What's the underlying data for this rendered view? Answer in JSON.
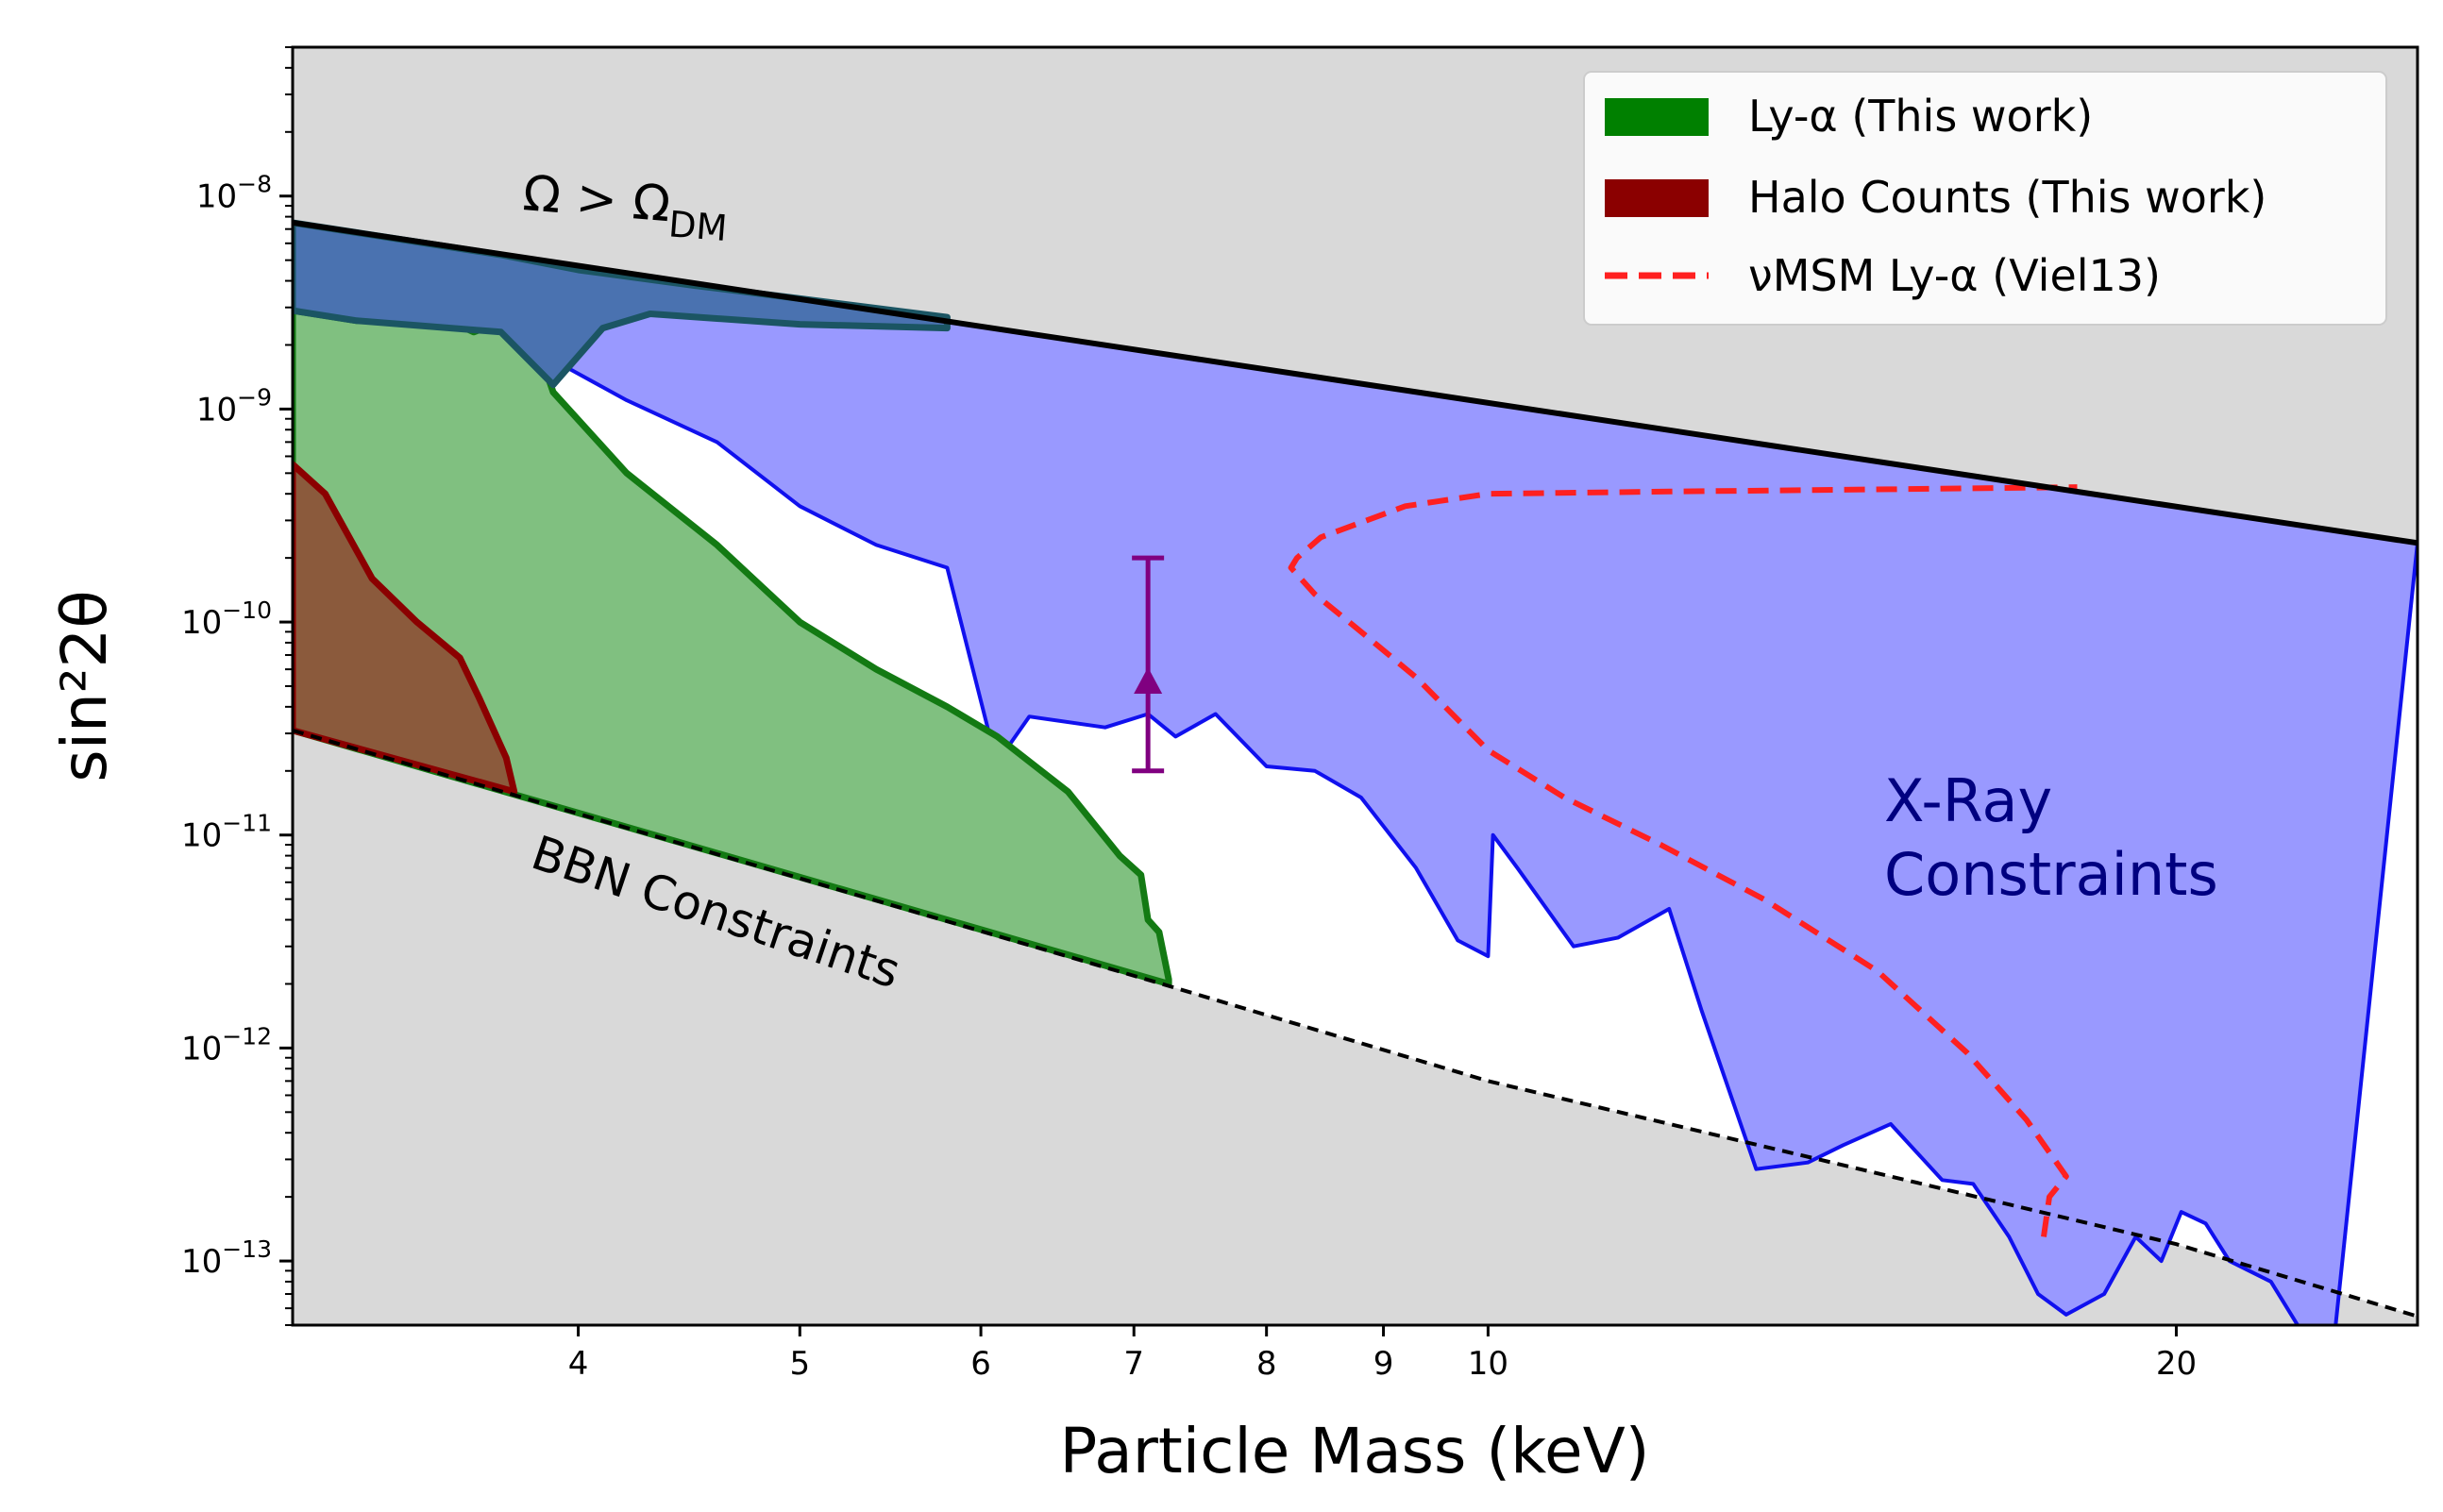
{
  "chart_data": {
    "type": "area",
    "xlabel": "Particle Mass (keV)",
    "ylabel": "sin²2θ",
    "x_scale": "log",
    "y_scale": "log",
    "xlim": [
      3.0,
      25.5
    ],
    "ylim": [
      5e-14,
      5e-08
    ],
    "grid": false,
    "legend_position": "top-right",
    "x_ticks": [
      {
        "value": 4,
        "label": "4"
      },
      {
        "value": 5,
        "label": "5"
      },
      {
        "value": 6,
        "label": "6"
      },
      {
        "value": 7,
        "label": "7"
      },
      {
        "value": 8,
        "label": "8"
      },
      {
        "value": 9,
        "label": "9"
      },
      {
        "value": 10,
        "label": "10"
      },
      {
        "value": 20,
        "label": "20"
      }
    ],
    "y_ticks": [
      {
        "value": 1e-13,
        "base": "10",
        "exp": "−13"
      },
      {
        "value": 1e-12,
        "base": "10",
        "exp": "−12"
      },
      {
        "value": 1e-11,
        "base": "10",
        "exp": "−11"
      },
      {
        "value": 1e-10,
        "base": "10",
        "exp": "−10"
      },
      {
        "value": 1e-09,
        "base": "10",
        "exp": "−9"
      },
      {
        "value": 1e-08,
        "base": "10",
        "exp": "−8"
      }
    ],
    "legend": [
      {
        "label": "Ly-α (This work)",
        "color": "#008000",
        "kind": "patch"
      },
      {
        "label": "Halo Counts (This work)",
        "color": "#8b0000",
        "kind": "patch"
      },
      {
        "label": "νMSM Ly-α (Viel13)",
        "color": "#ff2020",
        "kind": "dashed-line"
      }
    ],
    "colors": {
      "excluded_gray": "#d9d9d9",
      "xray_fill": "#9999ff",
      "xray_edge": "#1010ee",
      "lya_fill": "#80c080",
      "lya_edge": "#137a13",
      "halo_fill": "#8b5a3c",
      "halo_edge": "#8b0000",
      "overlap_fill": "#4a72b0",
      "overlap_edge": "#1b5563",
      "nu_msm": "#ff2020",
      "marker": "#800080"
    },
    "annotations": {
      "omega_main": "Ω > Ω",
      "omega_sub": "DM",
      "bbn": "BBN Constraints",
      "xray_line1": "X-Ray",
      "xray_line2": "Constraints"
    },
    "omega_dm_line": {
      "x": [
        3.0,
        25.5
      ],
      "y": [
        7.5e-09,
        2.35e-10
      ]
    },
    "bbn_line": {
      "x": [
        3.0,
        7.2,
        10.0,
        20.0,
        25.5
      ],
      "y": [
        3.1e-11,
        2e-12,
        7e-13,
        1.2e-13,
        5.5e-14
      ]
    },
    "xray_constraint": {
      "x": [
        3.0,
        3.2,
        3.45,
        3.6,
        3.75,
        3.82,
        3.9,
        4.2,
        4.6,
        5.0,
        5.4,
        5.8,
        6.05,
        6.1,
        6.3,
        6.8,
        7.1,
        7.3,
        7.6,
        8.0,
        8.4,
        8.8,
        9.3,
        9.7,
        10.0,
        10.05,
        10.3,
        10.9,
        11.4,
        12.0,
        12.4,
        13.1,
        13.8,
        14.3,
        15.0,
        15.8,
        16.3,
        16.9,
        17.4,
        17.9,
        18.6,
        19.2,
        19.7,
        20.1,
        20.6,
        21.1,
        22.0,
        22.6,
        23.4
      ],
      "y": [
        2.9e-09,
        2.6e-09,
        2.85e-09,
        2.3e-09,
        2.7e-09,
        2.3e-09,
        1.7e-09,
        1.1e-09,
        7e-10,
        3.5e-10,
        2.3e-10,
        1.8e-10,
        3e-11,
        2.2e-11,
        3.6e-11,
        3.2e-11,
        3.7e-11,
        2.9e-11,
        3.7e-11,
        2.1e-11,
        2e-11,
        1.5e-11,
        7e-12,
        3.2e-12,
        2.7e-12,
        1e-11,
        7e-12,
        3e-12,
        3.3e-12,
        4.5e-12,
        1.5e-12,
        2.7e-13,
        2.9e-13,
        3.5e-13,
        4.4e-13,
        2.4e-13,
        2.3e-13,
        1.3e-13,
        7e-14,
        5.6e-14,
        7e-14,
        1.3e-13,
        1e-13,
        1.7e-13,
        1.5e-13,
        1e-13,
        8e-14,
        5e-14,
        3.5e-14
      ]
    },
    "lya_this_work": {
      "x": [
        3.0,
        3.2,
        3.45,
        3.6,
        3.75,
        3.82,
        3.9,
        4.2,
        4.6,
        5.0,
        5.4,
        5.8,
        6.1,
        6.55,
        6.9,
        7.05,
        7.1,
        7.18,
        7.25
      ],
      "y": [
        2.9e-09,
        2.6e-09,
        2.85e-09,
        2.3e-09,
        2.7e-09,
        2.3e-09,
        1.2e-09,
        5e-10,
        2.3e-10,
        1e-10,
        6e-11,
        4e-11,
        2.9e-11,
        1.6e-11,
        8e-12,
        6.5e-12,
        4e-12,
        3.5e-12,
        2.1e-12
      ]
    },
    "lya_overlap_region": {
      "x": [
        3.0,
        3.7,
        4.0,
        4.5,
        5.0,
        5.8,
        5.8,
        5.0,
        4.3,
        4.1,
        3.9,
        3.7,
        3.2,
        3.0
      ],
      "y": [
        7.5e-09,
        5.3e-09,
        4.5e-09,
        3.8e-09,
        3.3e-09,
        2.7e-09,
        2.4e-09,
        2.5e-09,
        2.8e-09,
        2.4e-09,
        1.3e-09,
        2.3e-09,
        2.6e-09,
        2.9e-09
      ]
    },
    "halo_counts_this_work": {
      "x": [
        3.0,
        3.1,
        3.25,
        3.4,
        3.55,
        3.62,
        3.72,
        3.75
      ],
      "y": [
        5.5e-10,
        4e-10,
        1.6e-10,
        1e-10,
        6.8e-11,
        4.4e-11,
        2.3e-11,
        1.6e-11
      ]
    },
    "nu_msm_lya_viel13": {
      "x": [
        17.5,
        17.6,
        17.9,
        17.2,
        16.2,
        14.8,
        13.2,
        11.9,
        10.8,
        10.0,
        9.3,
        8.8,
        8.4,
        8.2,
        8.25,
        8.45,
        9.2,
        10.0,
        12.0,
        15.0,
        18.1
      ],
      "y": [
        1.3e-13,
        2e-13,
        2.5e-13,
        4.6e-13,
        9.5e-13,
        2.3e-12,
        5e-12,
        9e-12,
        1.5e-11,
        2.5e-11,
        5.5e-11,
        9e-11,
        1.35e-10,
        1.8e-10,
        2e-10,
        2.5e-10,
        3.5e-10,
        4e-10,
        4.1e-10,
        4.2e-10,
        4.3e-10
      ]
    },
    "reference_point": {
      "x": 7.1,
      "y": 5e-11,
      "y_low": 2e-11,
      "y_high": 2e-10
    }
  }
}
